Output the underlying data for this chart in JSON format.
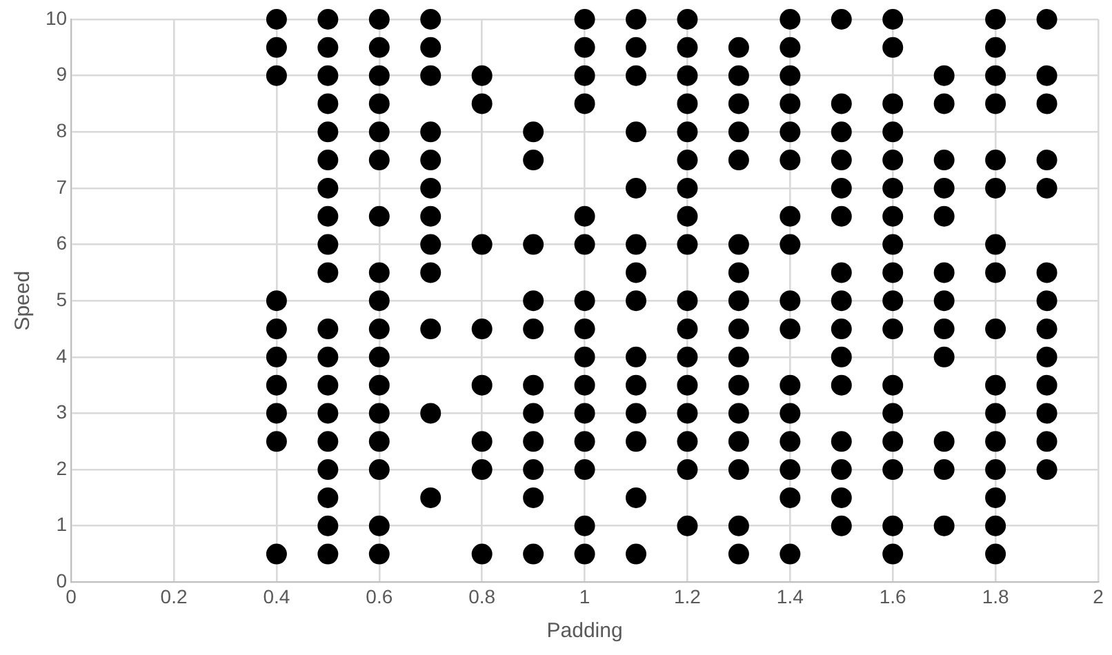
{
  "chart_data": {
    "type": "scatter",
    "xlabel": "Padding",
    "ylabel": "Speed",
    "xlim": [
      0,
      2
    ],
    "xticks": [
      0,
      0.2,
      0.4,
      0.6,
      0.8,
      1,
      1.2,
      1.4,
      1.6,
      1.8,
      2
    ],
    "ylim": [
      0,
      10
    ],
    "yticks": [
      0,
      1,
      2,
      3,
      4,
      5,
      6,
      7,
      8,
      9,
      10
    ],
    "grid": true,
    "legend": false,
    "marker": "circle",
    "series": [
      {
        "color": "#000000",
        "x": [
          0.4,
          0.4,
          0.4,
          0.4,
          0.4,
          0.4,
          0.4,
          0.4,
          0.4,
          0.4,
          0.5,
          0.5,
          0.5,
          0.5,
          0.5,
          0.5,
          0.5,
          0.5,
          0.5,
          0.5,
          0.5,
          0.5,
          0.5,
          0.5,
          0.5,
          0.5,
          0.5,
          0.5,
          0.5,
          0.6,
          0.6,
          0.6,
          0.6,
          0.6,
          0.6,
          0.6,
          0.6,
          0.6,
          0.6,
          0.6,
          0.6,
          0.6,
          0.6,
          0.6,
          0.6,
          0.6,
          0.7,
          0.7,
          0.7,
          0.7,
          0.7,
          0.7,
          0.7,
          0.7,
          0.7,
          0.7,
          0.7,
          0.7,
          0.8,
          0.8,
          0.8,
          0.8,
          0.8,
          0.8,
          0.8,
          0.8,
          0.9,
          0.9,
          0.9,
          0.9,
          0.9,
          0.9,
          0.9,
          0.9,
          0.9,
          0.9,
          0.9,
          1,
          1,
          1,
          1,
          1,
          1,
          1,
          1,
          1,
          1,
          1,
          1,
          1,
          1,
          1,
          1.1,
          1.1,
          1.1,
          1.1,
          1.1,
          1.1,
          1.1,
          1.1,
          1.1,
          1.1,
          1.1,
          1.1,
          1.1,
          1.1,
          1.2,
          1.2,
          1.2,
          1.2,
          1.2,
          1.2,
          1.2,
          1.2,
          1.2,
          1.2,
          1.2,
          1.2,
          1.2,
          1.2,
          1.2,
          1.2,
          1.2,
          1.3,
          1.3,
          1.3,
          1.3,
          1.3,
          1.3,
          1.3,
          1.3,
          1.3,
          1.3,
          1.3,
          1.3,
          1.3,
          1.3,
          1.3,
          1.3,
          1.4,
          1.4,
          1.4,
          1.4,
          1.4,
          1.4,
          1.4,
          1.4,
          1.4,
          1.4,
          1.4,
          1.4,
          1.4,
          1.4,
          1.4,
          1.4,
          1.5,
          1.5,
          1.5,
          1.5,
          1.5,
          1.5,
          1.5,
          1.5,
          1.5,
          1.5,
          1.5,
          1.5,
          1.5,
          1.5,
          1.5,
          1.6,
          1.6,
          1.6,
          1.6,
          1.6,
          1.6,
          1.6,
          1.6,
          1.6,
          1.6,
          1.6,
          1.6,
          1.6,
          1.6,
          1.6,
          1.6,
          1.6,
          1.7,
          1.7,
          1.7,
          1.7,
          1.7,
          1.7,
          1.7,
          1.7,
          1.7,
          1.7,
          1.7,
          1.7,
          1.8,
          1.8,
          1.8,
          1.8,
          1.8,
          1.8,
          1.8,
          1.8,
          1.8,
          1.8,
          1.8,
          1.8,
          1.8,
          1.8,
          1.8,
          1.8,
          1.9,
          1.9,
          1.9,
          1.9,
          1.9,
          1.9,
          1.9,
          1.9,
          1.9,
          1.9,
          1.9,
          1.9,
          1.9
        ],
        "values": [
          10,
          9.5,
          9,
          5,
          4.5,
          4,
          3.5,
          3,
          2.5,
          0.5,
          10,
          9.5,
          9,
          8.5,
          8,
          7.5,
          7,
          6.5,
          6,
          5.5,
          4.5,
          4,
          3.5,
          3,
          2.5,
          2,
          1.5,
          1,
          0.5,
          10,
          9.5,
          9,
          8.5,
          8,
          7.5,
          6.5,
          5.5,
          5,
          4.5,
          4,
          3.5,
          3,
          2.5,
          2,
          1,
          0.5,
          10,
          9.5,
          9,
          8,
          7.5,
          7,
          6.5,
          6,
          5.5,
          4.5,
          3,
          1.5,
          9,
          8.5,
          6,
          4.5,
          3.5,
          2.5,
          2,
          0.5,
          8,
          7.5,
          6,
          5,
          4.5,
          3.5,
          3,
          2.5,
          2,
          1.5,
          0.5,
          10,
          9.5,
          9,
          8.5,
          6.5,
          6,
          5,
          4.5,
          4,
          3.5,
          3,
          2.5,
          2,
          1,
          0.5,
          10,
          9.5,
          9,
          8,
          7,
          6,
          5.5,
          5,
          4,
          3.5,
          3,
          2.5,
          1.5,
          0.5,
          10,
          9.5,
          9,
          8.5,
          8,
          7.5,
          7,
          6.5,
          6,
          5,
          4.5,
          4,
          3.5,
          3,
          2.5,
          2,
          1,
          9.5,
          9,
          8.5,
          8,
          7.5,
          6,
          5.5,
          5,
          4.5,
          4,
          3.5,
          3,
          2.5,
          2,
          1,
          0.5,
          10,
          9.5,
          9,
          8.5,
          8,
          7.5,
          6.5,
          6,
          5,
          4.5,
          3.5,
          3,
          2.5,
          2,
          1.5,
          0.5,
          10,
          8.5,
          8,
          7.5,
          7,
          6.5,
          5.5,
          5,
          4.5,
          4,
          3.5,
          2.5,
          2,
          1.5,
          1,
          10,
          9.5,
          8.5,
          8,
          7.5,
          7,
          6.5,
          6,
          5.5,
          5,
          4.5,
          3.5,
          3,
          2.5,
          2,
          1,
          0.5,
          9,
          8.5,
          7.5,
          7,
          6.5,
          5.5,
          5,
          4.5,
          4,
          2.5,
          2,
          1,
          10,
          9.5,
          9,
          8.5,
          7.5,
          7,
          6,
          5.5,
          4.5,
          3.5,
          3,
          2.5,
          2,
          1.5,
          1,
          0.5,
          10,
          9,
          8.5,
          7.5,
          7,
          5.5,
          5,
          4.5,
          4,
          3.5,
          3,
          2.5,
          2
        ]
      }
    ]
  }
}
